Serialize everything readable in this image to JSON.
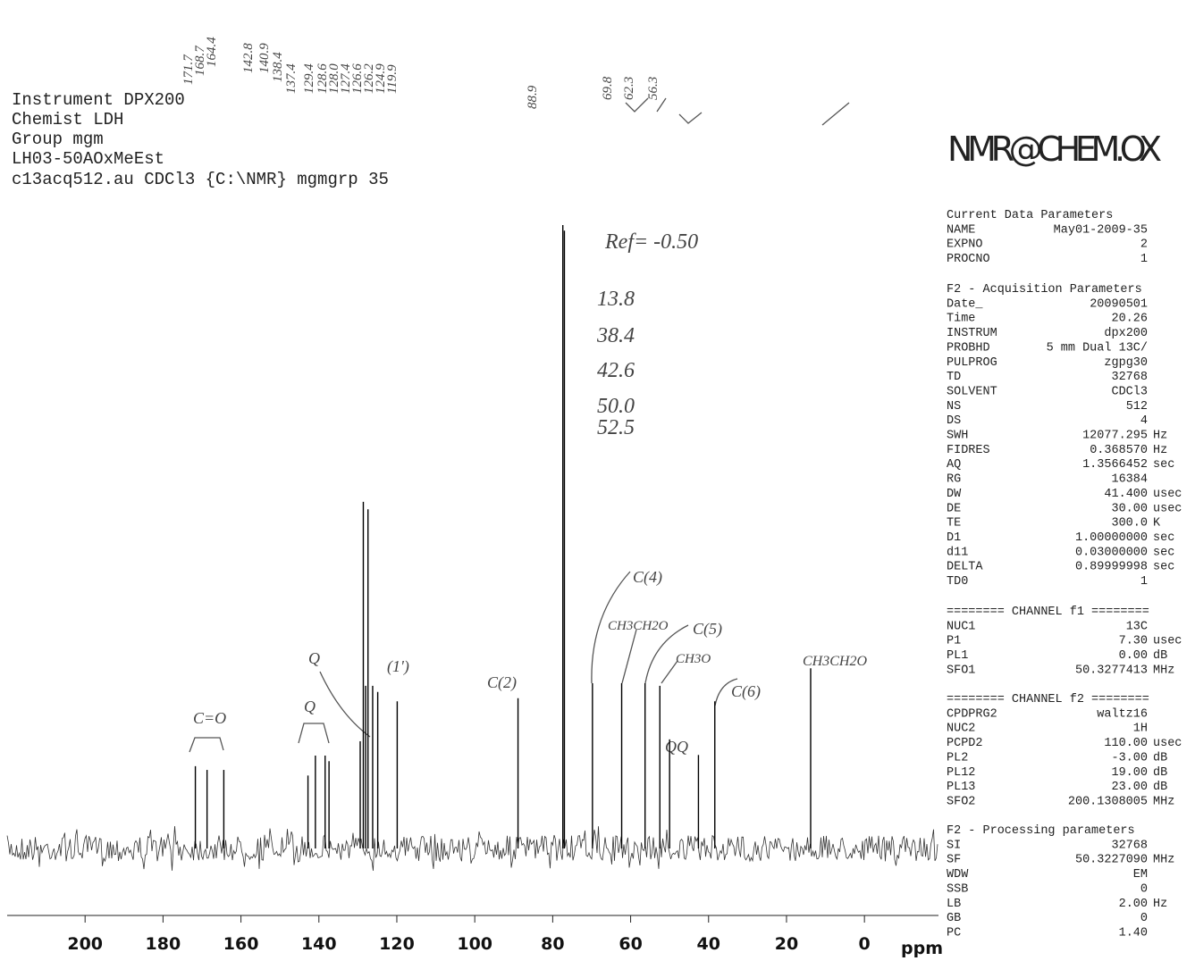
{
  "header_lines": [
    "Instrument DPX200",
    "Chemist LDH",
    "Group mgm",
    "LH03-50AOxMeEst",
    "c13acq512.au CDCl3 {C:\\NMR} mgmgrp 35"
  ],
  "logo": "NMR@CHEM.OX",
  "parameters": [
    {
      "title": "Current Data Parameters",
      "rows": [
        {
          "key": "NAME",
          "value": "May01-2009-35"
        },
        {
          "key": "EXPNO",
          "value": "2"
        },
        {
          "key": "PROCNO",
          "value": "1"
        }
      ]
    },
    {
      "title": "F2 - Acquisition Parameters",
      "rows": [
        {
          "key": "Date_",
          "value": "20090501"
        },
        {
          "key": "Time",
          "value": "20.26"
        },
        {
          "key": "INSTRUM",
          "value": "dpx200"
        },
        {
          "key": "PROBHD",
          "value": "5 mm Dual 13C/"
        },
        {
          "key": "PULPROG",
          "value": "zgpg30"
        },
        {
          "key": "TD",
          "value": "32768"
        },
        {
          "key": "SOLVENT",
          "value": "CDCl3"
        },
        {
          "key": "NS",
          "value": "512"
        },
        {
          "key": "DS",
          "value": "4"
        },
        {
          "key": "SWH",
          "value": "12077.295",
          "unit": "Hz"
        },
        {
          "key": "FIDRES",
          "value": "0.368570",
          "unit": "Hz"
        },
        {
          "key": "AQ",
          "value": "1.3566452",
          "unit": "sec"
        },
        {
          "key": "RG",
          "value": "16384"
        },
        {
          "key": "DW",
          "value": "41.400",
          "unit": "usec"
        },
        {
          "key": "DE",
          "value": "30.00",
          "unit": "usec"
        },
        {
          "key": "TE",
          "value": "300.0",
          "unit": "K"
        },
        {
          "key": "D1",
          "value": "1.00000000",
          "unit": "sec"
        },
        {
          "key": "d11",
          "value": "0.03000000",
          "unit": "sec"
        },
        {
          "key": "DELTA",
          "value": "0.89999998",
          "unit": "sec"
        },
        {
          "key": "TD0",
          "value": "1"
        }
      ]
    },
    {
      "title": "======== CHANNEL f1 ========",
      "rows": [
        {
          "key": "NUC1",
          "value": "13C"
        },
        {
          "key": "P1",
          "value": "7.30",
          "unit": "usec"
        },
        {
          "key": "PL1",
          "value": "0.00",
          "unit": "dB"
        },
        {
          "key": "SFO1",
          "value": "50.3277413",
          "unit": "MHz"
        }
      ]
    },
    {
      "title": "======== CHANNEL f2 ========",
      "rows": [
        {
          "key": "CPDPRG2",
          "value": "waltz16"
        },
        {
          "key": "NUC2",
          "value": "1H"
        },
        {
          "key": "PCPD2",
          "value": "110.00",
          "unit": "usec"
        },
        {
          "key": "PL2",
          "value": "-3.00",
          "unit": "dB"
        },
        {
          "key": "PL12",
          "value": "19.00",
          "unit": "dB"
        },
        {
          "key": "PL13",
          "value": "23.00",
          "unit": "dB"
        },
        {
          "key": "SFO2",
          "value": "200.1308005",
          "unit": "MHz"
        }
      ]
    },
    {
      "title": "F2 - Processing parameters",
      "rows": [
        {
          "key": "SI",
          "value": "32768"
        },
        {
          "key": "SF",
          "value": "50.3227090",
          "unit": "MHz"
        },
        {
          "key": "WDW",
          "value": "EM"
        },
        {
          "key": "SSB",
          "value": "0"
        },
        {
          "key": "LB",
          "value": "2.00",
          "unit": "Hz"
        },
        {
          "key": "GB",
          "value": "0"
        },
        {
          "key": "PC",
          "value": "1.40"
        }
      ]
    }
  ],
  "annotations": [
    "Ref= -0.50",
    "13.8",
    "38.4",
    "42.6",
    "50.0",
    "52.5",
    "C=O",
    "Q",
    "Q",
    "(1')",
    "C(2)",
    "C(4)",
    "CH3CH2O",
    "C(5)",
    "CH3O",
    "QQ",
    "C(6)",
    "CH3CH2O",
    "88.9",
    "69.8",
    "62.3",
    "56.3",
    "171.7",
    "168.7",
    "164.4",
    "142.8",
    "140.9",
    "138.4",
    "137.4",
    "129.4",
    "128.6",
    "128.0",
    "127.4",
    "126.6",
    "126.2",
    "124.9",
    "119.9"
  ],
  "chart_data": {
    "type": "spectrum",
    "xlabel": "ppm",
    "xlim": [
      220,
      -19
    ],
    "xticks": [
      200,
      180,
      160,
      140,
      120,
      100,
      80,
      60,
      40,
      20,
      0
    ],
    "ylim": [
      0,
      100
    ],
    "color": "#000000",
    "x": [
      171.7,
      168.7,
      164.4,
      142.8,
      140.9,
      138.4,
      137.4,
      129.4,
      128.6,
      128.0,
      127.4,
      126.2,
      124.9,
      119.9,
      88.9,
      77.4,
      77.0,
      69.8,
      62.3,
      56.3,
      52.5,
      50.0,
      42.6,
      38.4,
      13.8
    ],
    "values": [
      13.2,
      12.6,
      12.6,
      11.7,
      14.9,
      14.9,
      14.0,
      17.2,
      55.6,
      26.1,
      54.4,
      26.1,
      25.1,
      23.6,
      24.1,
      100,
      99.1,
      26.5,
      26.5,
      26.5,
      26.1,
      17.5,
      15.0,
      23.6,
      28.9
    ]
  }
}
